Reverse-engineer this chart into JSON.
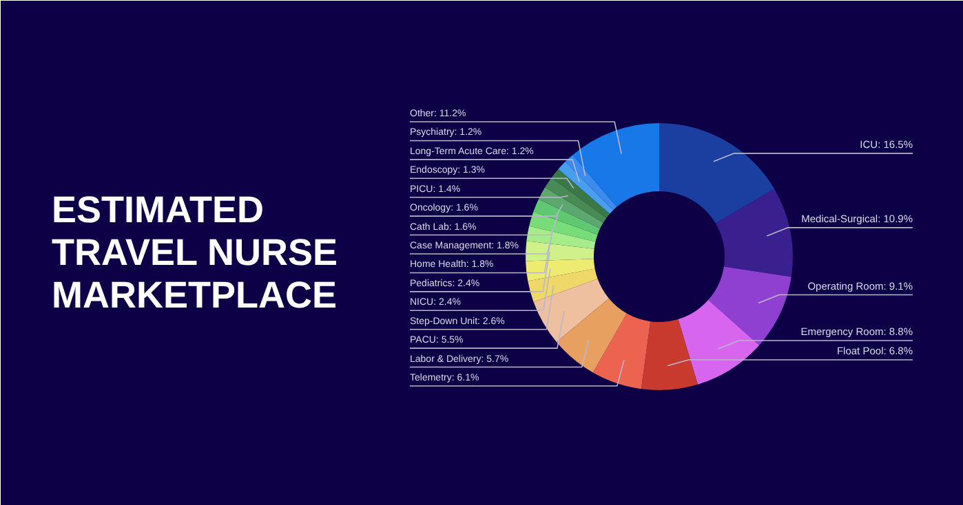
{
  "chart_data": {
    "type": "donut",
    "title": "ESTIMATED TRAVEL NURSE MARKETPLACE",
    "categories": [
      "ICU",
      "Medical-Surgical",
      "Operating Room",
      "Emergency Room",
      "Float Pool",
      "Telemetry",
      "Labor & Delivery",
      "PACU",
      "Step-Down Unit",
      "NICU",
      "Pediatrics",
      "Home Health",
      "Case Management",
      "Cath Lab",
      "Oncology",
      "PICU",
      "Endoscopy",
      "Long-Term Acute Care",
      "Psychiatry",
      "Other"
    ],
    "values": [
      16.5,
      10.9,
      9.1,
      8.8,
      6.8,
      6.1,
      5.7,
      5.5,
      2.6,
      2.4,
      2.4,
      1.8,
      1.8,
      1.6,
      1.6,
      1.4,
      1.3,
      1.2,
      1.2,
      11.2
    ],
    "value_labels": [
      "16.5%",
      "10.9%",
      "9.1%",
      "8.8%",
      "6.8%",
      "6.1%",
      "5.7%",
      "5.5%",
      "2.6%",
      "2.4%",
      "2.4%",
      "1.8%",
      "1.8%",
      "1.6%",
      "1.6%",
      "1.4%",
      "1.3%",
      "1.2%",
      "1.2%",
      "11.2%"
    ],
    "colors": [
      "#1a3fa0",
      "#3a1f8f",
      "#9040d0",
      "#d865ee",
      "#c83a2e",
      "#ec6450",
      "#e8a060",
      "#eec0a0",
      "#f0d868",
      "#eeec70",
      "#d0f08a",
      "#a6ec8a",
      "#78dc78",
      "#60c870",
      "#5ca870",
      "#4a8a55",
      "#3a7848",
      "#4a9ef0",
      "#3c8cf0",
      "#1878e8"
    ]
  }
}
